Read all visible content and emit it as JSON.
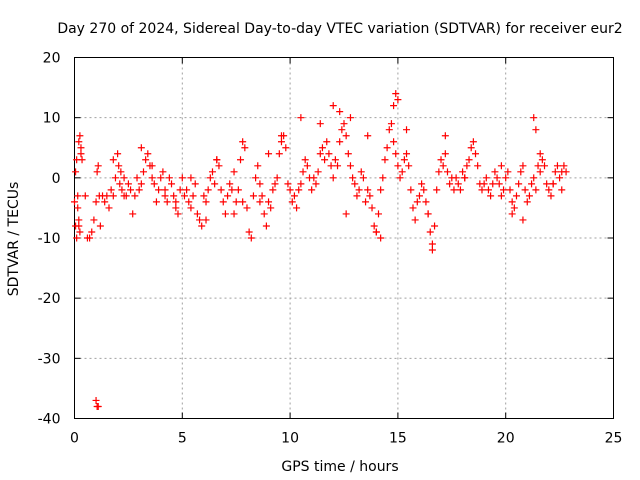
{
  "chart_data": {
    "type": "scatter",
    "title": "Day 270 of 2024, Sidereal Day-to-day VTEC variation (SDTVAR) for receiver eur2",
    "xlabel": "GPS time / hours",
    "ylabel": "SDTVAR / TECUs",
    "xlim": [
      0,
      25
    ],
    "ylim": [
      -40,
      20
    ],
    "xticks": [
      0,
      5,
      10,
      15,
      20,
      25
    ],
    "yticks": [
      -40,
      -30,
      -20,
      -10,
      0,
      10,
      20
    ],
    "xtick_labels": [
      "0",
      "5",
      "10",
      "15",
      "20",
      "25"
    ],
    "ytick_labels": [
      "-40",
      "-30",
      "-20",
      "-10",
      "0",
      "10",
      "20"
    ],
    "grid": true,
    "marker": "+",
    "series_color": "#ff0000",
    "series": [
      {
        "name": "SDTVAR",
        "x": [
          0.0,
          0.05,
          0.1,
          0.15,
          0.2,
          0.25,
          0.3,
          0.35,
          0.5,
          0.6,
          0.7,
          0.8,
          0.9,
          1.0,
          1.05,
          1.1,
          1.15,
          1.3,
          1.4,
          1.5,
          1.6,
          1.7,
          1.8,
          1.9,
          2.0,
          2.05,
          2.1,
          2.15,
          2.2,
          2.3,
          2.4,
          2.5,
          2.6,
          2.7,
          2.8,
          2.9,
          3.0,
          3.1,
          3.2,
          3.3,
          3.4,
          3.5,
          3.6,
          3.7,
          3.8,
          3.9,
          4.0,
          4.1,
          4.2,
          4.3,
          4.4,
          4.5,
          4.6,
          4.7,
          4.8,
          4.9,
          5.0,
          5.1,
          5.2,
          5.3,
          5.4,
          5.5,
          5.6,
          5.7,
          5.8,
          5.9,
          6.0,
          6.1,
          6.2,
          6.3,
          6.4,
          6.5,
          6.6,
          6.7,
          6.8,
          6.9,
          7.0,
          7.1,
          7.2,
          7.3,
          7.4,
          7.5,
          7.6,
          7.7,
          7.8,
          7.9,
          8.0,
          8.1,
          8.2,
          8.3,
          8.4,
          8.5,
          8.6,
          8.7,
          8.8,
          8.9,
          9.0,
          9.1,
          9.2,
          9.3,
          9.4,
          9.5,
          9.6,
          9.7,
          9.8,
          9.9,
          10.0,
          10.1,
          10.2,
          10.3,
          10.4,
          10.5,
          10.6,
          10.7,
          10.8,
          10.9,
          11.0,
          11.1,
          11.2,
          11.3,
          11.4,
          11.5,
          11.6,
          11.7,
          11.8,
          11.9,
          12.0,
          12.1,
          12.2,
          12.3,
          12.4,
          12.5,
          12.6,
          12.7,
          12.8,
          12.9,
          13.0,
          13.1,
          13.2,
          13.3,
          13.4,
          13.5,
          13.6,
          13.7,
          13.8,
          13.9,
          14.0,
          14.1,
          14.2,
          14.3,
          14.4,
          14.5,
          14.6,
          14.7,
          14.8,
          14.9,
          15.0,
          15.1,
          15.2,
          15.3,
          15.4,
          15.5,
          15.6,
          15.7,
          15.8,
          15.9,
          16.0,
          16.1,
          16.2,
          16.3,
          16.4,
          16.5,
          16.6,
          16.7,
          16.8,
          16.9,
          17.0,
          17.1,
          17.2,
          17.3,
          17.4,
          17.5,
          17.6,
          17.7,
          17.8,
          17.9,
          18.0,
          18.1,
          18.2,
          18.3,
          18.4,
          18.5,
          18.6,
          18.7,
          18.8,
          18.9,
          19.0,
          19.1,
          19.2,
          19.3,
          19.4,
          19.5,
          19.6,
          19.7,
          19.8,
          19.9,
          20.0,
          20.1,
          20.2,
          20.3,
          20.4,
          20.5,
          20.6,
          20.7,
          20.8,
          20.9,
          21.0,
          21.1,
          21.2,
          21.3,
          21.4,
          21.5,
          21.6,
          21.7,
          21.8,
          21.9,
          22.0,
          22.1,
          22.2,
          22.3,
          22.4,
          22.5,
          22.6,
          22.7,
          22.8,
          0.15,
          0.2,
          0.25,
          0.1,
          0.05,
          0.2,
          0.3,
          1.2,
          1.8,
          2.3,
          3.1,
          3.6,
          4.2,
          4.7,
          5.4,
          6.1,
          6.6,
          7.4,
          7.8,
          8.6,
          9.0,
          9.6,
          10.5,
          11.4,
          12.0,
          12.3,
          12.6,
          12.8,
          13.6,
          14.0,
          14.2,
          14.8,
          14.9,
          15.0,
          15.4,
          16.4,
          16.6,
          17.2,
          18.1,
          19.8,
          20.3,
          20.8,
          21.3,
          21.4,
          21.6,
          22.2,
          22.6,
          1.1,
          1.05,
          1.0
        ],
        "y": [
          -4,
          -8,
          -10,
          -3,
          6,
          7,
          5,
          3,
          -3,
          -10,
          -10,
          -9,
          -7,
          -4,
          1,
          2,
          -3,
          -3,
          -4,
          -3,
          -5,
          -2,
          -3,
          0,
          4,
          2,
          -1,
          1,
          -2,
          0,
          -3,
          -1,
          -2,
          -6,
          -3,
          0,
          -2,
          -1,
          1,
          3,
          4,
          2,
          0,
          -1,
          -4,
          -2,
          0,
          1,
          -2,
          -4,
          0,
          -1,
          -3,
          -5,
          -6,
          -2,
          0,
          -3,
          -2,
          -4,
          -5,
          -3,
          -1,
          -6,
          -7,
          -8,
          -3,
          -4,
          -2,
          0,
          1,
          -1,
          3,
          2,
          -2,
          -4,
          -6,
          -3,
          -1,
          -2,
          1,
          -4,
          -2,
          3,
          6,
          5,
          -5,
          -9,
          -10,
          -3,
          0,
          2,
          -1,
          -3,
          -6,
          -8,
          -4,
          -5,
          -2,
          -1,
          0,
          4,
          6,
          7,
          5,
          -1,
          -2,
          -4,
          -3,
          -5,
          -2,
          -1,
          1,
          3,
          2,
          0,
          -2,
          0,
          -1,
          1,
          4,
          5,
          3,
          6,
          4,
          2,
          0,
          3,
          2,
          6,
          8,
          9,
          7,
          4,
          2,
          0,
          -1,
          -3,
          -2,
          1,
          0,
          -4,
          -2,
          -3,
          -5,
          -8,
          -9,
          -6,
          -2,
          0,
          3,
          5,
          8,
          9,
          6,
          4,
          2,
          0,
          1,
          3,
          4,
          2,
          -2,
          -5,
          -7,
          -4,
          -3,
          -1,
          -2,
          -4,
          -6,
          -9,
          -11,
          -8,
          -2,
          1,
          3,
          2,
          4,
          1,
          -1,
          0,
          -2,
          0,
          -1,
          -2,
          1,
          0,
          2,
          3,
          5,
          6,
          4,
          2,
          -1,
          -2,
          -1,
          0,
          -2,
          -3,
          -1,
          1,
          0,
          -1,
          -3,
          -2,
          0,
          1,
          -2,
          -4,
          -5,
          -3,
          -1,
          1,
          2,
          -2,
          -4,
          -3,
          -1,
          0,
          -2,
          2,
          1,
          3,
          2,
          -1,
          -2,
          -3,
          -1,
          1,
          2,
          0,
          1,
          2,
          1,
          -5,
          -7,
          -9,
          3,
          1,
          -8,
          4,
          -8,
          3,
          -3,
          5,
          2,
          -3,
          -4,
          0,
          -7,
          3,
          -6,
          -4,
          -4,
          4,
          7,
          10,
          9,
          12,
          11,
          -6,
          10,
          7,
          -9,
          -10,
          12,
          14,
          13,
          8,
          -6,
          -12,
          7,
          0,
          2,
          -6,
          -7,
          10,
          8,
          4,
          -1,
          -2,
          -38,
          -38,
          -37
        ]
      }
    ]
  }
}
